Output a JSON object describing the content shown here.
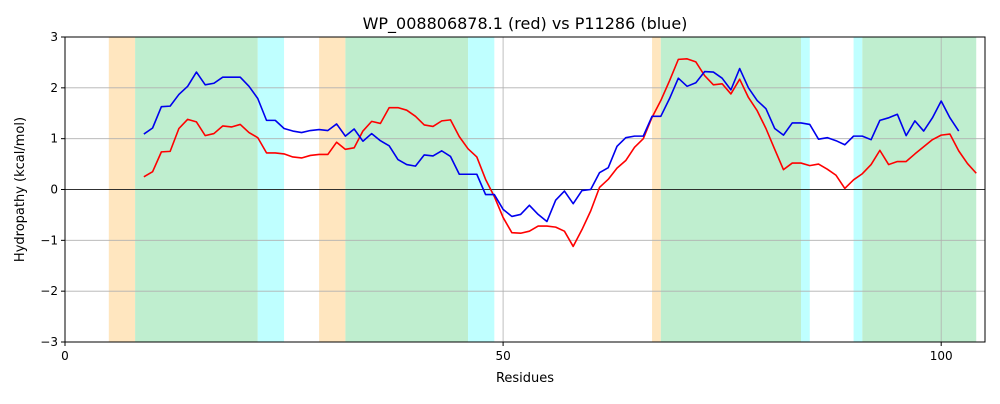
{
  "chart_data": {
    "type": "line",
    "title": "WP_008806878.1 (red) vs P11286 (blue)",
    "xlabel": "Residues",
    "ylabel": "Hydropathy (kcal/mol)",
    "xlim": [
      0,
      105
    ],
    "ylim": [
      -3,
      3
    ],
    "xticks": [
      0,
      50,
      100
    ],
    "yticks": [
      -3,
      -2,
      -1,
      0,
      1,
      2,
      3
    ],
    "grid": true,
    "hline_y": 0,
    "regions": [
      {
        "x0": 5,
        "x1": 8,
        "color": "#ffe6bf"
      },
      {
        "x0": 8,
        "x1": 22,
        "color": "#bfeecf"
      },
      {
        "x0": 22,
        "x1": 25,
        "color": "#bfffff"
      },
      {
        "x0": 29,
        "x1": 32,
        "color": "#ffe6bf"
      },
      {
        "x0": 32,
        "x1": 46,
        "color": "#bfeecf"
      },
      {
        "x0": 46,
        "x1": 49,
        "color": "#bfffff"
      },
      {
        "x0": 67,
        "x1": 68,
        "color": "#ffe6bf"
      },
      {
        "x0": 68,
        "x1": 84,
        "color": "#bfeecf"
      },
      {
        "x0": 84,
        "x1": 85,
        "color": "#bfffff"
      },
      {
        "x0": 90,
        "x1": 91,
        "color": "#bfffff"
      },
      {
        "x0": 91,
        "x1": 104,
        "color": "#bfeecf"
      }
    ],
    "series": [
      {
        "name": "WP_008806878.1",
        "color": "#ff0000",
        "x_start": 9,
        "values": [
          0.25,
          0.35,
          0.74,
          0.75,
          1.2,
          1.38,
          1.33,
          1.06,
          1.1,
          1.25,
          1.23,
          1.28,
          1.12,
          1.02,
          0.72,
          0.72,
          0.7,
          0.64,
          0.62,
          0.67,
          0.69,
          0.69,
          0.93,
          0.79,
          0.82,
          1.15,
          1.34,
          1.3,
          1.61,
          1.61,
          1.56,
          1.44,
          1.27,
          1.24,
          1.35,
          1.37,
          1.04,
          0.8,
          0.64,
          0.2,
          -0.14,
          -0.55,
          -0.85,
          -0.86,
          -0.82,
          -0.72,
          -0.72,
          -0.74,
          -0.82,
          -1.12,
          -0.79,
          -0.42,
          0.04,
          0.2,
          0.42,
          0.57,
          0.83,
          1.0,
          1.42,
          1.75,
          2.14,
          2.56,
          2.57,
          2.51,
          2.24,
          2.06,
          2.08,
          1.88,
          2.17,
          1.81,
          1.55,
          1.2,
          0.79,
          0.39,
          0.52,
          0.52,
          0.47,
          0.5,
          0.4,
          0.28,
          0.02,
          0.19,
          0.31,
          0.49,
          0.77,
          0.49,
          0.55,
          0.55,
          0.7,
          0.84,
          0.98,
          1.07,
          1.09,
          0.76,
          0.51,
          0.32
        ]
      },
      {
        "name": "P11286",
        "color": "#0000ee",
        "x_start": 9,
        "values": [
          1.09,
          1.21,
          1.63,
          1.64,
          1.87,
          2.03,
          2.31,
          2.06,
          2.09,
          2.21,
          2.21,
          2.21,
          2.03,
          1.79,
          1.36,
          1.36,
          1.2,
          1.15,
          1.12,
          1.16,
          1.18,
          1.16,
          1.29,
          1.05,
          1.19,
          0.95,
          1.1,
          0.96,
          0.86,
          0.59,
          0.49,
          0.46,
          0.68,
          0.66,
          0.76,
          0.65,
          0.3,
          0.3,
          0.3,
          -0.1,
          -0.1,
          -0.39,
          -0.53,
          -0.49,
          -0.31,
          -0.49,
          -0.63,
          -0.21,
          -0.03,
          -0.28,
          -0.02,
          0.0,
          0.33,
          0.43,
          0.85,
          1.02,
          1.05,
          1.05,
          1.44,
          1.44,
          1.79,
          2.19,
          2.03,
          2.1,
          2.32,
          2.31,
          2.19,
          1.96,
          2.38,
          2.0,
          1.75,
          1.59,
          1.2,
          1.07,
          1.31,
          1.31,
          1.28,
          0.99,
          1.02,
          0.96,
          0.88,
          1.05,
          1.05,
          0.98,
          1.36,
          1.41,
          1.48,
          1.06,
          1.35,
          1.15,
          1.41,
          1.74,
          1.41,
          1.15
        ]
      }
    ]
  }
}
